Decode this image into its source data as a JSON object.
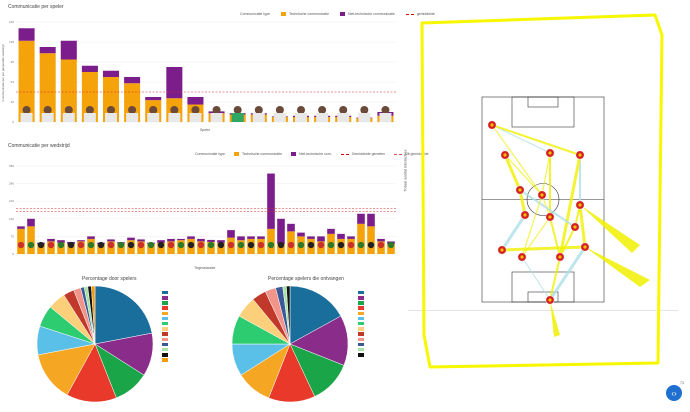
{
  "colors": {
    "orange": "#f5a30a",
    "purple": "#7b1e8c",
    "red_line": "#d62828",
    "accent_yellow": "#f7f700",
    "field_line": "#333333",
    "button_blue": "#1f6fd1"
  },
  "chart1": {
    "title": "Communicatie per speler",
    "legend_title": "Communicatie type",
    "legend_items": [
      "Technische communicatie",
      "Niet-technische communicatie",
      "gemiddelde"
    ],
    "ylabel": "Communicatie per per gespeelde wedstrijd",
    "xlabel": "Speler"
  },
  "chart2": {
    "title": "Communicatie per wedstrijd",
    "legend_title": "Communicatie type",
    "legend_items": [
      "Technische communicatie",
      "Niet-technische com.",
      "Gemiddelde gemeten",
      "Uit gemiddelde"
    ],
    "xlabel": "Tegenstander"
  },
  "pie1": {
    "title": "Percentage door spelers"
  },
  "pie2": {
    "title": "Percentage spelers die ontvangen"
  },
  "network": {
    "side_label": "Totaal aantal interacties"
  },
  "ui": {
    "scroll_icon": "‹›",
    "page_badge": "73"
  },
  "chart_data": [
    {
      "type": "bar",
      "title": "Communicatie per speler",
      "xlabel": "Speler",
      "ylabel": "Communicatie per per gespeelde wedstrijd",
      "categories": [
        "1",
        "2",
        "3",
        "4",
        "5",
        "6",
        "7",
        "8",
        "9",
        "10",
        "11",
        "12",
        "13",
        "14",
        "15",
        "16",
        "17",
        "18"
      ],
      "series": [
        {
          "name": "Technische communicatie",
          "values": [
            130,
            110,
            100,
            80,
            72,
            62,
            35,
            38,
            28,
            14,
            12,
            12,
            8,
            8,
            8,
            8,
            6,
            10
          ]
        },
        {
          "name": "Niet-technische communicatie",
          "values": [
            20,
            10,
            30,
            10,
            10,
            10,
            5,
            50,
            12,
            3,
            2,
            2,
            1,
            2,
            2,
            2,
            1,
            6
          ]
        }
      ],
      "ylim": [
        0,
        160
      ]
    },
    {
      "type": "bar",
      "title": "Communicatie per wedstrijd",
      "xlabel": "Tegenstander",
      "categories": [
        "1",
        "2",
        "3",
        "4",
        "5",
        "6",
        "7",
        "8",
        "9",
        "10",
        "11",
        "12",
        "13",
        "14",
        "15",
        "16",
        "17",
        "18",
        "19",
        "20",
        "21",
        "22",
        "23",
        "24",
        "25",
        "26",
        "27",
        "28",
        "29",
        "30",
        "31",
        "32",
        "33",
        "34",
        "35",
        "36",
        "37",
        "38"
      ],
      "series": [
        {
          "name": "Technische communicatie",
          "values": [
            100,
            110,
            40,
            50,
            45,
            40,
            50,
            60,
            40,
            50,
            42,
            55,
            50,
            40,
            45,
            50,
            55,
            60,
            50,
            48,
            45,
            65,
            55,
            60,
            60,
            100,
            40,
            90,
            70,
            60,
            50,
            80,
            60,
            60,
            120,
            110,
            50,
            40
          ]
        },
        {
          "name": "Niet-technische com.",
          "values": [
            10,
            30,
            5,
            10,
            10,
            8,
            5,
            10,
            5,
            8,
            5,
            10,
            8,
            5,
            10,
            10,
            5,
            10,
            10,
            8,
            10,
            30,
            15,
            10,
            10,
            220,
            100,
            30,
            15,
            10,
            20,
            20,
            20,
            10,
            40,
            50,
            10,
            10
          ]
        }
      ],
      "ylim": [
        0,
        350
      ]
    },
    {
      "type": "pie",
      "title": "Percentage door spelers",
      "values": [
        22,
        12,
        10,
        14,
        14,
        8,
        6,
        5,
        3,
        2,
        1,
        1,
        1,
        1
      ]
    },
    {
      "type": "pie",
      "title": "Percentage spelers die ontvangen",
      "values": [
        17,
        14,
        12,
        13,
        10,
        9,
        8,
        6,
        4,
        3,
        2,
        1,
        1
      ]
    }
  ]
}
